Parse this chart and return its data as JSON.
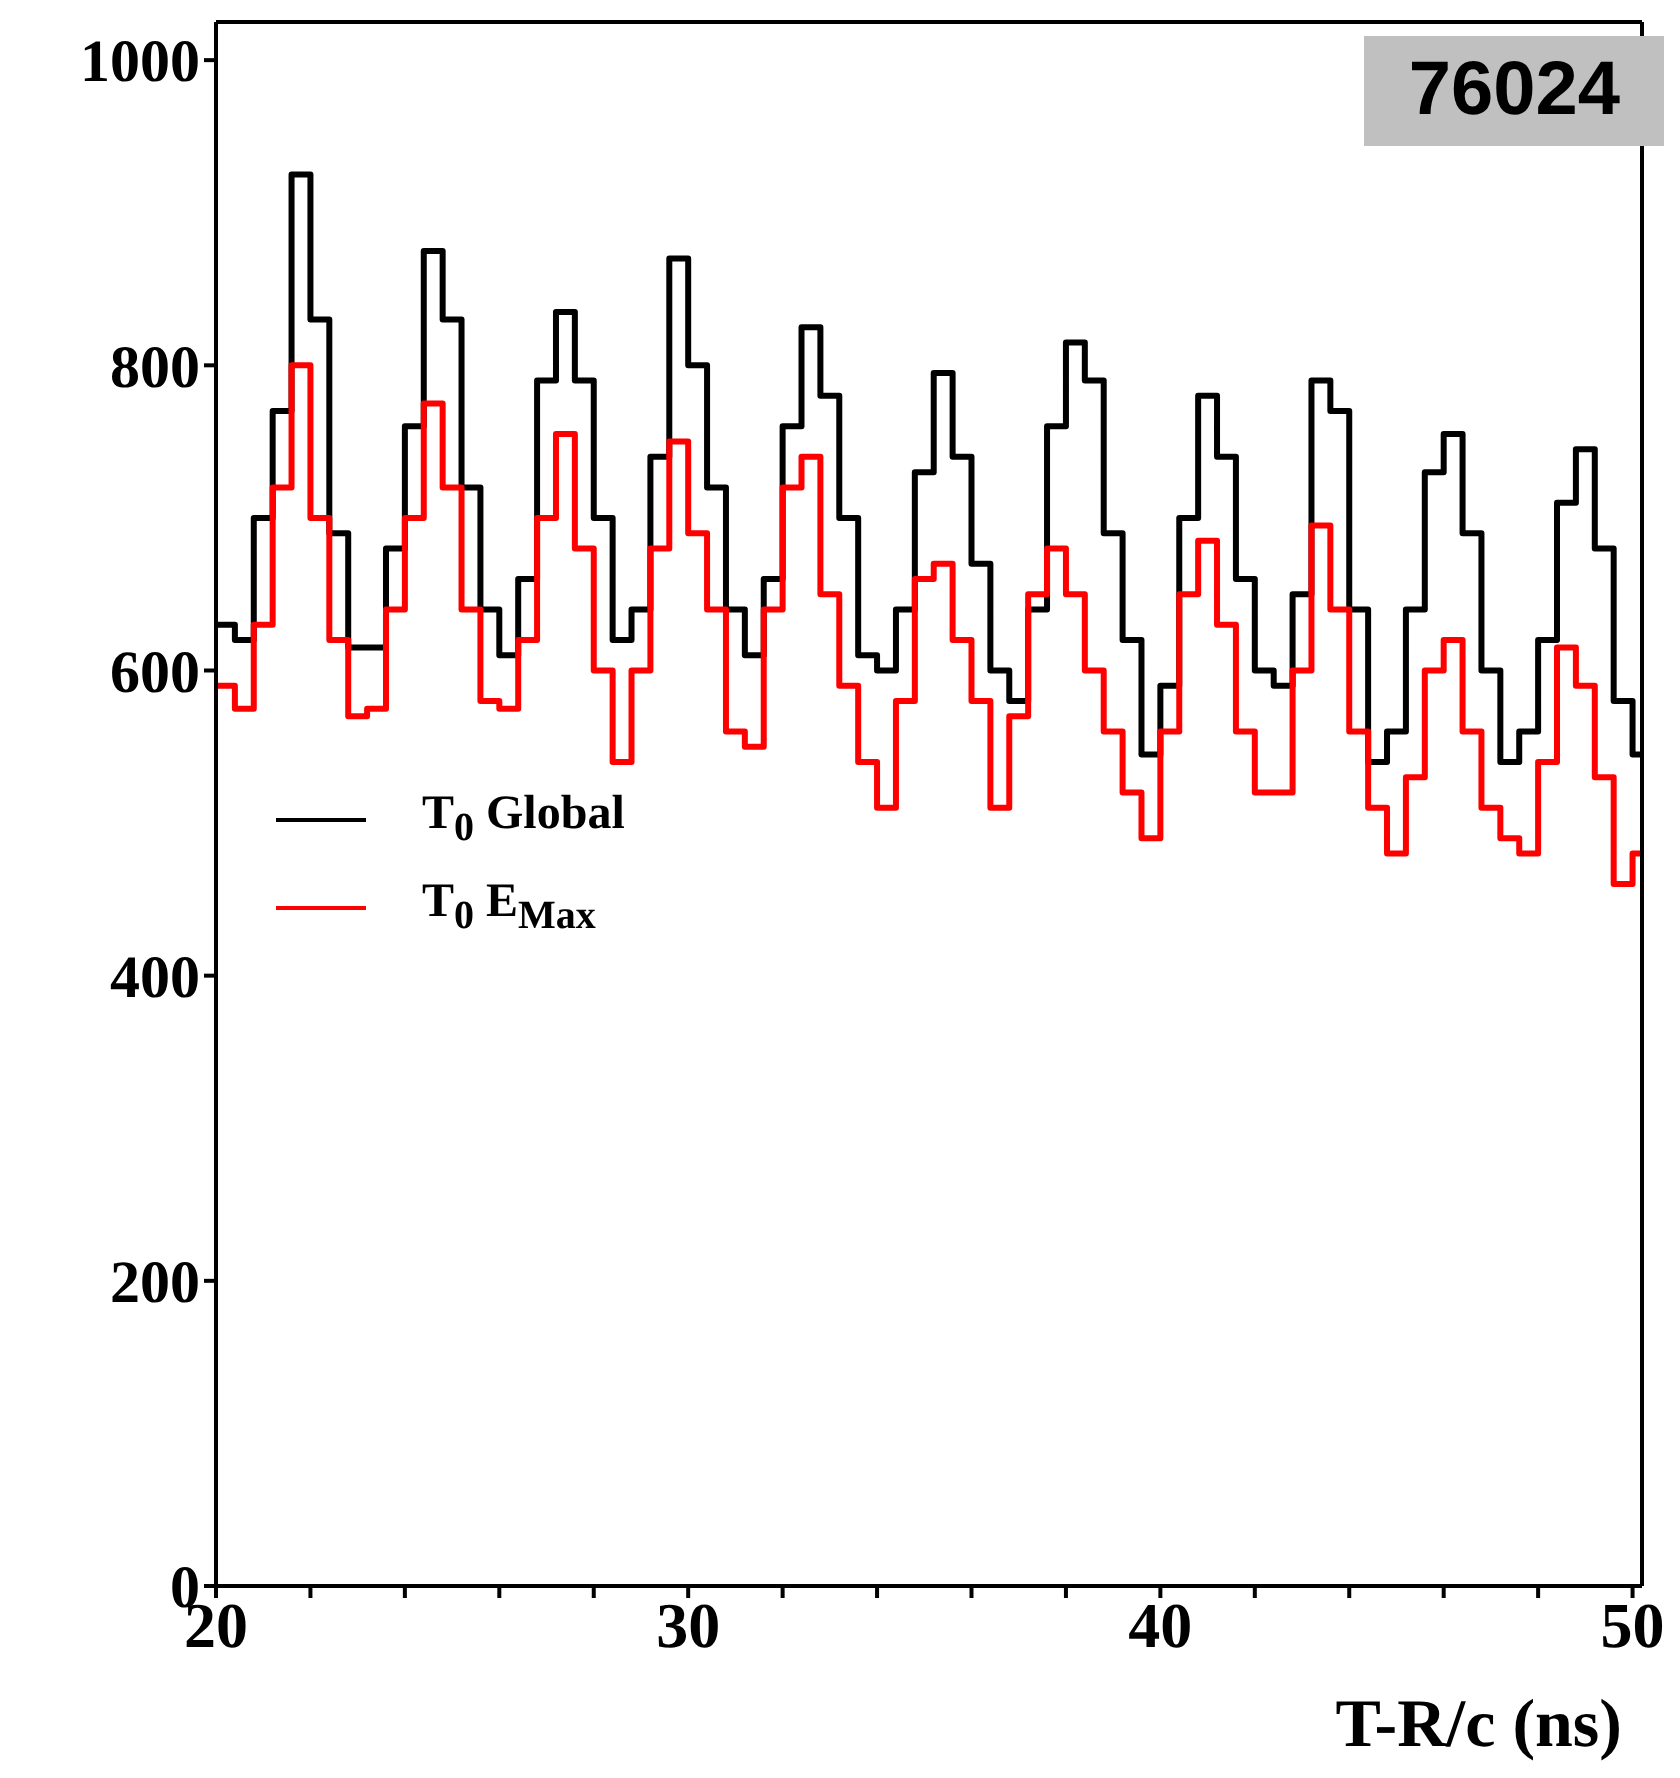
{
  "chart_data": {
    "type": "histogram",
    "xlabel": "T-R/c (ns)",
    "annotations": [
      "76024"
    ],
    "bins": [
      20,
      20.4,
      20.8,
      21.2,
      21.6,
      22,
      22.4,
      22.8,
      23.2,
      23.6,
      24,
      24.4,
      24.8,
      25.2,
      25.6,
      26,
      26.4,
      26.8,
      27.2,
      27.6,
      28,
      28.4,
      28.8,
      29.2,
      29.6,
      30,
      30.4,
      30.8,
      31.2,
      31.6,
      32,
      32.4,
      32.8,
      33.2,
      33.6,
      34,
      34.4,
      34.8,
      35.2,
      35.6,
      36,
      36.4,
      36.8,
      37.2,
      37.6,
      38,
      38.4,
      38.8,
      39.2,
      39.6,
      40,
      40.4,
      40.8,
      41.2,
      41.6,
      42,
      42.4,
      42.8,
      43.2,
      43.6,
      44,
      44.4,
      44.8,
      45.2,
      45.6,
      46,
      46.4,
      46.8,
      47.2,
      47.6,
      48,
      48.4,
      48.8,
      49.2,
      49.6,
      50,
      50.2
    ],
    "series": [
      {
        "name": "T$_{0}$ Global",
        "color": "#000000",
        "values": [
          630,
          620,
          700,
          770,
          925,
          830,
          690,
          615,
          615,
          680,
          760,
          875,
          830,
          720,
          640,
          610,
          660,
          790,
          835,
          790,
          700,
          620,
          640,
          740,
          870,
          800,
          720,
          640,
          610,
          660,
          760,
          825,
          780,
          700,
          610,
          600,
          640,
          730,
          795,
          740,
          670,
          600,
          580,
          640,
          760,
          815,
          790,
          690,
          620,
          545,
          590,
          700,
          780,
          740,
          660,
          600,
          590,
          650,
          790,
          770,
          640,
          540,
          560,
          640,
          730,
          755,
          690,
          600,
          540,
          560,
          620,
          710,
          745,
          680,
          580,
          545
        ]
      },
      {
        "name": "T$_{0}$ E$_{Max}$",
        "color": "#ff0000",
        "values": [
          590,
          575,
          630,
          720,
          800,
          700,
          620,
          570,
          575,
          640,
          700,
          775,
          720,
          640,
          580,
          575,
          620,
          700,
          755,
          680,
          600,
          540,
          600,
          680,
          750,
          690,
          640,
          560,
          550,
          640,
          720,
          740,
          650,
          590,
          540,
          510,
          580,
          660,
          670,
          620,
          580,
          510,
          570,
          650,
          680,
          650,
          600,
          560,
          520,
          490,
          560,
          650,
          685,
          630,
          560,
          520,
          520,
          600,
          695,
          640,
          560,
          510,
          480,
          530,
          600,
          620,
          560,
          510,
          490,
          480,
          540,
          615,
          590,
          530,
          460,
          480
        ]
      }
    ],
    "xlim": [
      20,
      50.2
    ],
    "xticks": [
      20,
      {
        "value": 22,
        "label": null
      },
      {
        "value": 24,
        "label": null
      },
      {
        "value": 26,
        "label": null
      },
      {
        "value": 28,
        "label": null
      },
      30,
      {
        "value": 32,
        "label": null
      },
      {
        "value": 34,
        "label": null
      },
      {
        "value": 36,
        "label": null
      },
      {
        "value": 38,
        "label": null
      },
      40,
      {
        "value": 42,
        "label": null
      },
      {
        "value": 44,
        "label": null
      },
      {
        "value": 46,
        "label": null
      },
      {
        "value": 48,
        "label": null
      },
      50
    ],
    "ylim": [
      0,
      1025
    ],
    "yticks": [
      0,
      200,
      400,
      600,
      800,
      1000
    ],
    "legend": "left"
  }
}
